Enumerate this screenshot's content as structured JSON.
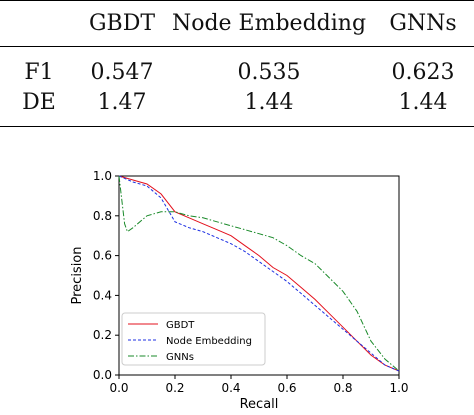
{
  "table": {
    "headers": [
      "",
      "GBDT",
      "Node Embedding",
      "GNNs"
    ],
    "rows": [
      [
        "F1",
        "0.547",
        "0.535",
        "0.623"
      ],
      [
        "DE",
        "1.47",
        "1.44",
        "1.44"
      ]
    ]
  },
  "chart_data": {
    "type": "line",
    "xlabel": "Recall",
    "ylabel": "Precision",
    "xlim": [
      0.0,
      1.0
    ],
    "ylim": [
      0.0,
      1.0
    ],
    "xticks": [
      "0.0",
      "0.2",
      "0.4",
      "0.6",
      "0.8",
      "1.0"
    ],
    "yticks": [
      "0.0",
      "0.2",
      "0.4",
      "0.6",
      "0.8",
      "1.0"
    ],
    "grid": false,
    "legend_position": "lower-left",
    "series": [
      {
        "name": "GBDT",
        "color": "#e3101c",
        "style": "solid",
        "x": [
          0.0,
          0.05,
          0.1,
          0.15,
          0.2,
          0.25,
          0.3,
          0.35,
          0.4,
          0.45,
          0.5,
          0.55,
          0.6,
          0.65,
          0.7,
          0.75,
          0.8,
          0.85,
          0.9,
          0.95,
          1.0
        ],
        "y": [
          1.0,
          0.98,
          0.96,
          0.91,
          0.82,
          0.79,
          0.76,
          0.73,
          0.7,
          0.65,
          0.6,
          0.54,
          0.5,
          0.44,
          0.38,
          0.31,
          0.24,
          0.17,
          0.1,
          0.05,
          0.02
        ]
      },
      {
        "name": "Node Embedding",
        "color": "#1c2fe3",
        "style": "dashed",
        "x": [
          0.0,
          0.05,
          0.1,
          0.15,
          0.2,
          0.25,
          0.3,
          0.35,
          0.4,
          0.45,
          0.5,
          0.55,
          0.6,
          0.65,
          0.7,
          0.75,
          0.8,
          0.85,
          0.9,
          0.95,
          1.0
        ],
        "y": [
          1.0,
          0.97,
          0.95,
          0.89,
          0.77,
          0.74,
          0.72,
          0.69,
          0.66,
          0.62,
          0.57,
          0.52,
          0.47,
          0.41,
          0.35,
          0.29,
          0.23,
          0.17,
          0.11,
          0.05,
          0.02
        ]
      },
      {
        "name": "GNNs",
        "color": "#1a8a2a",
        "style": "dashdot",
        "x": [
          0.0,
          0.01,
          0.02,
          0.03,
          0.05,
          0.1,
          0.15,
          0.2,
          0.25,
          0.3,
          0.35,
          0.4,
          0.45,
          0.5,
          0.55,
          0.6,
          0.65,
          0.7,
          0.75,
          0.8,
          0.85,
          0.9,
          0.95,
          1.0
        ],
        "y": [
          1.0,
          0.88,
          0.76,
          0.72,
          0.74,
          0.8,
          0.82,
          0.82,
          0.8,
          0.79,
          0.77,
          0.75,
          0.73,
          0.71,
          0.69,
          0.65,
          0.6,
          0.56,
          0.49,
          0.42,
          0.32,
          0.17,
          0.08,
          0.02
        ]
      }
    ]
  }
}
